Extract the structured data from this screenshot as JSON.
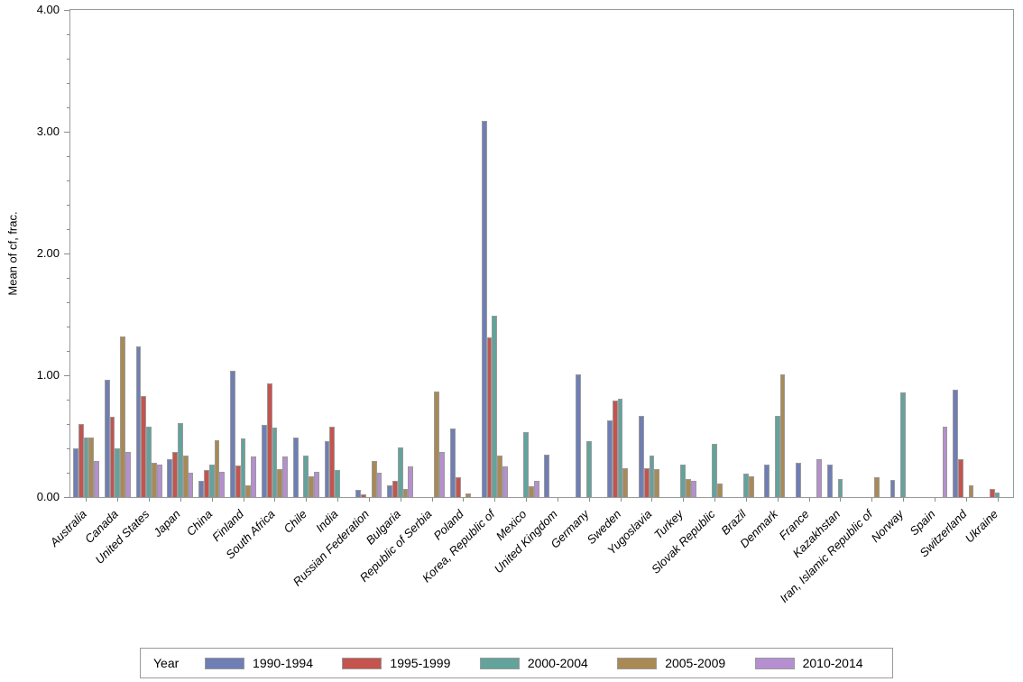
{
  "chart_data": {
    "type": "bar",
    "title": "",
    "xlabel": "",
    "ylabel": "Mean of cf, frac.",
    "ylim": [
      0,
      4
    ],
    "ytick_labels": [
      "0.00",
      "1.00",
      "2.00",
      "3.00",
      "4.00"
    ],
    "minor_tick_step": 0.2,
    "grid": false,
    "legend_title": "Year",
    "legend_position": "bottom",
    "categories": [
      "Australia",
      "Canada",
      "United States",
      "Japan",
      "China",
      "Finland",
      "South Africa",
      "Chile",
      "India",
      "Russian Federation",
      "Bulgaria",
      "Republic of Serbia",
      "Poland",
      "Korea, Republic of",
      "Mexico",
      "United Kingdom",
      "Germany",
      "Sweden",
      "Yugoslavia",
      "Turkey",
      "Slovak Republic",
      "Brazil",
      "Denmark",
      "France",
      "Kazakhstan",
      "Iran, Islamic Republic of",
      "Norway",
      "Spain",
      "Switzerland",
      "Ukraine"
    ],
    "series": [
      {
        "name": "1990-1994",
        "color": "#6f7eb4",
        "values": [
          0.4,
          0.96,
          1.24,
          0.31,
          0.13,
          1.04,
          0.59,
          0.49,
          0.46,
          0.06,
          0.1,
          null,
          0.56,
          3.09,
          null,
          0.35,
          1.01,
          0.63,
          0.67,
          null,
          null,
          null,
          0.27,
          0.28,
          0.27,
          null,
          0.14,
          null,
          0.88,
          null
        ]
      },
      {
        "name": "1995-1999",
        "color": "#c5534e",
        "values": [
          0.6,
          0.66,
          0.83,
          0.37,
          0.22,
          0.26,
          0.93,
          null,
          0.58,
          0.02,
          0.13,
          null,
          0.16,
          1.31,
          null,
          null,
          null,
          0.79,
          0.24,
          null,
          null,
          null,
          null,
          null,
          null,
          null,
          null,
          null,
          0.31,
          0.07
        ]
      },
      {
        "name": "2000-2004",
        "color": "#62a39b",
        "values": [
          0.49,
          0.4,
          0.58,
          0.61,
          0.27,
          0.48,
          0.57,
          0.34,
          0.22,
          null,
          0.41,
          null,
          null,
          1.49,
          0.53,
          null,
          0.46,
          0.81,
          0.34,
          0.27,
          0.44,
          0.19,
          0.67,
          null,
          0.15,
          null,
          0.86,
          null,
          null,
          0.04
        ]
      },
      {
        "name": "2005-2009",
        "color": "#a98a55",
        "values": [
          0.49,
          1.32,
          0.28,
          0.34,
          0.47,
          0.1,
          0.23,
          0.17,
          null,
          0.3,
          0.07,
          0.87,
          0.03,
          0.34,
          0.09,
          null,
          null,
          0.24,
          0.23,
          0.15,
          0.11,
          0.17,
          1.01,
          null,
          null,
          0.16,
          null,
          null,
          0.1,
          null
        ]
      },
      {
        "name": "2010-2014",
        "color": "#b58fcf",
        "values": [
          0.3,
          0.37,
          0.27,
          0.2,
          0.21,
          0.33,
          0.33,
          0.21,
          null,
          0.2,
          0.25,
          0.37,
          null,
          0.25,
          0.13,
          null,
          null,
          null,
          null,
          0.13,
          null,
          null,
          null,
          0.31,
          null,
          null,
          null,
          0.58,
          null,
          null
        ]
      }
    ]
  },
  "colors": {
    "bar_border": "#9a9a9a",
    "axis": "#8c8c8c",
    "background": "#ffffff"
  }
}
